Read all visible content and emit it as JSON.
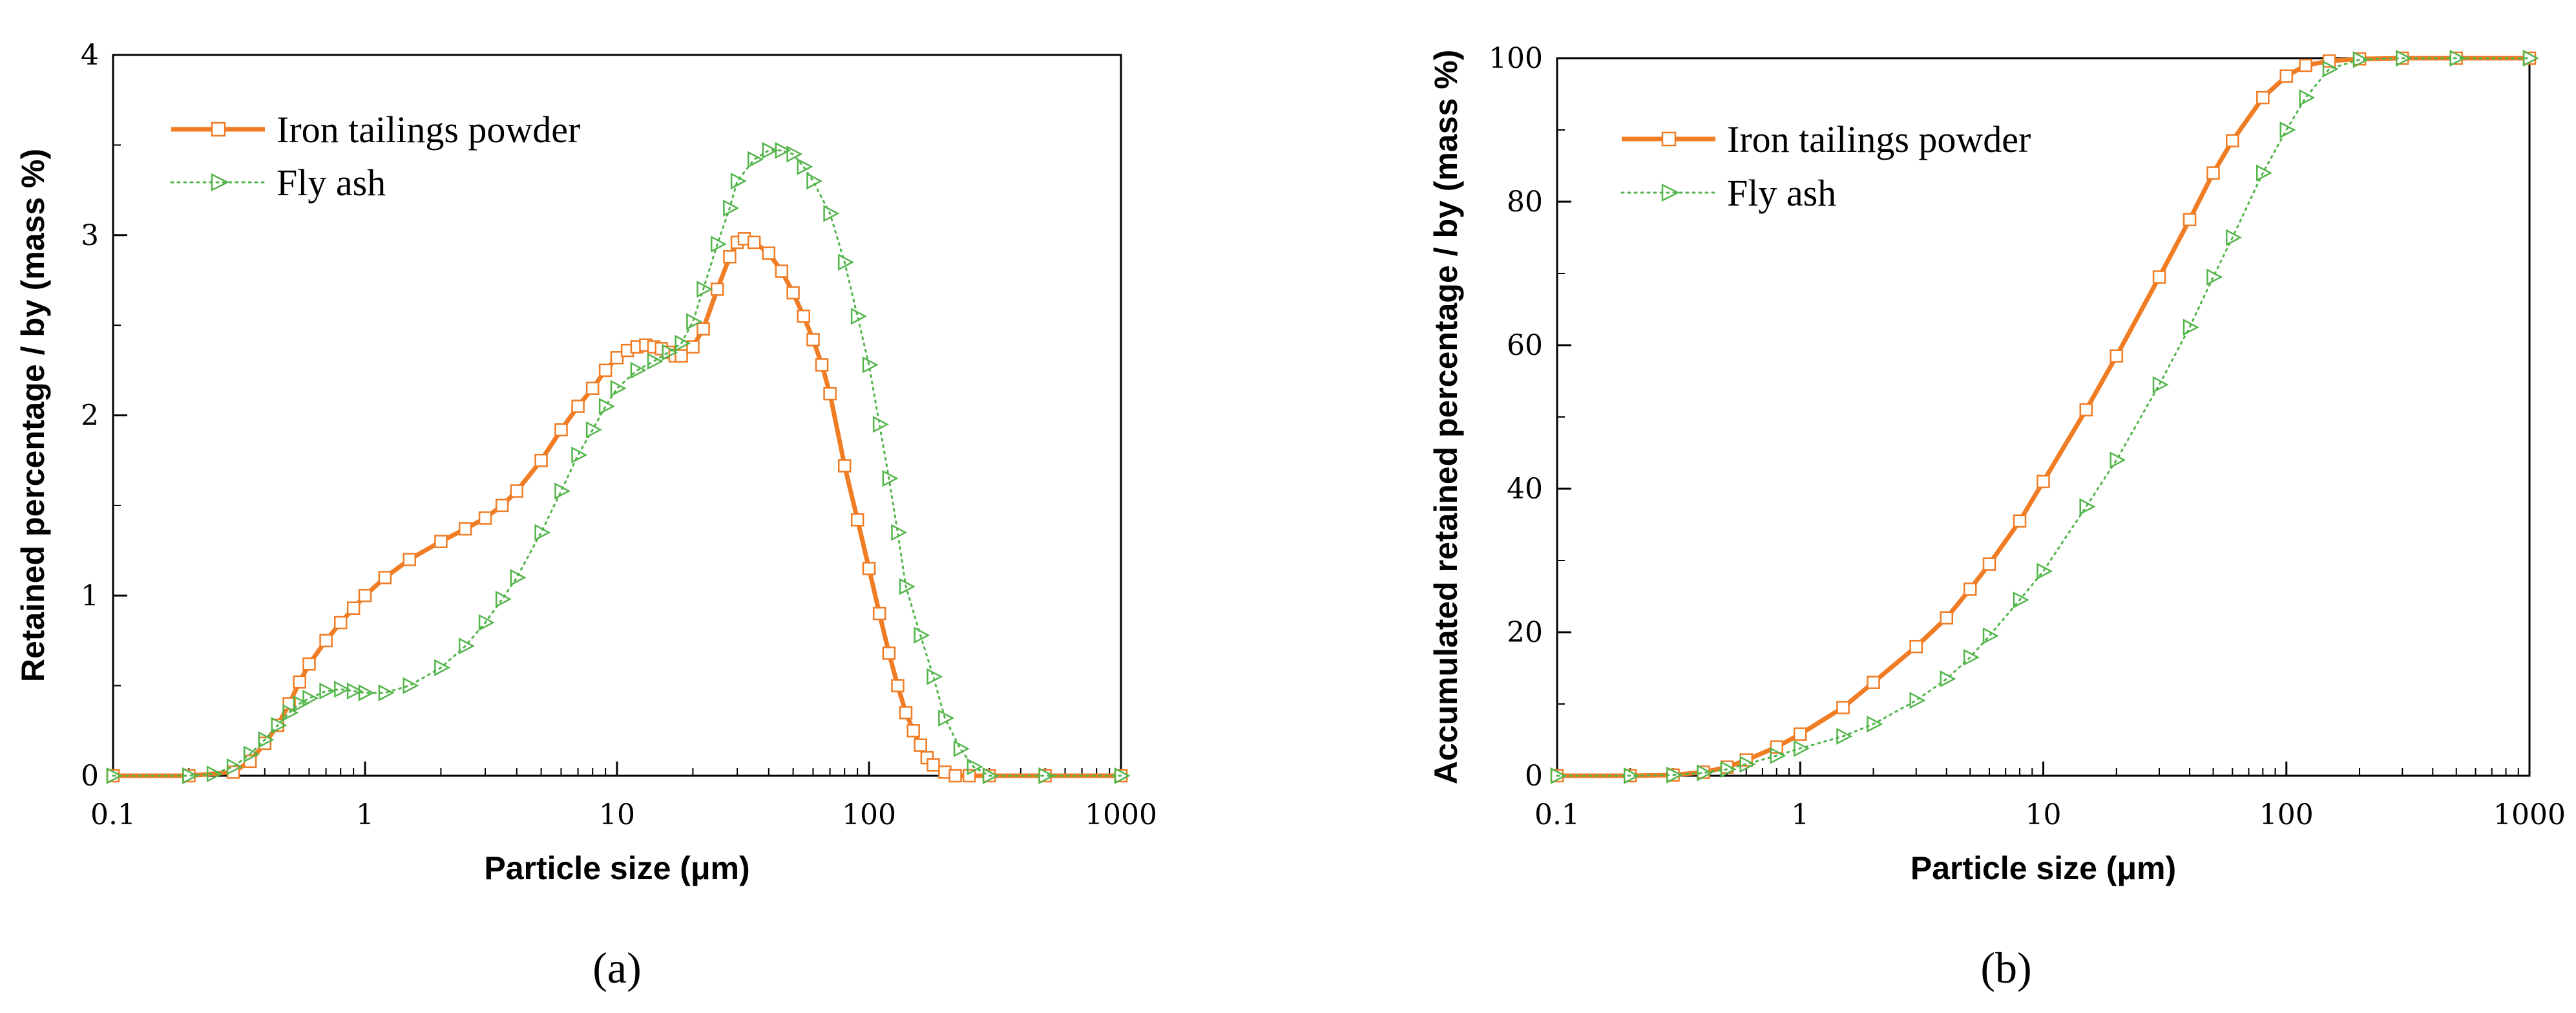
{
  "colors": {
    "iron": "#f07c24",
    "fly": "#52b54a",
    "axis": "#000000"
  },
  "chart_data": [
    {
      "type": "line",
      "panel": "(a)",
      "xscale": "log",
      "xlim": [
        0.1,
        1000
      ],
      "ylim": [
        0,
        4
      ],
      "xticks": [
        "0.1",
        "1",
        "10",
        "100",
        "1000"
      ],
      "yticks": [
        "0",
        "1",
        "2",
        "3",
        "4"
      ],
      "xlabel": "Particle size (μm)",
      "ylabel": "Retained percentage / by (mass %)",
      "legend": [
        "Iron tailings powder",
        "Fly ash"
      ],
      "series": [
        {
          "name": "Iron tailings powder",
          "marker": "square",
          "x": [
            0.1,
            0.2,
            0.3,
            0.35,
            0.4,
            0.45,
            0.5,
            0.55,
            0.6,
            0.7,
            0.8,
            0.9,
            1,
            1.2,
            1.5,
            2,
            2.5,
            3,
            3.5,
            4,
            5,
            6,
            7,
            8,
            9,
            10,
            11,
            12,
            13,
            14,
            15,
            16,
            17,
            18,
            20,
            22,
            25,
            28,
            30,
            32,
            35,
            40,
            45,
            50,
            55,
            60,
            65,
            70,
            80,
            90,
            100,
            110,
            120,
            130,
            140,
            150,
            160,
            170,
            180,
            200,
            220,
            250,
            300,
            500,
            1000
          ],
          "y": [
            0,
            0,
            0.02,
            0.08,
            0.18,
            0.28,
            0.4,
            0.52,
            0.62,
            0.75,
            0.85,
            0.93,
            1.0,
            1.1,
            1.2,
            1.3,
            1.37,
            1.43,
            1.5,
            1.58,
            1.75,
            1.92,
            2.05,
            2.15,
            2.25,
            2.32,
            2.36,
            2.38,
            2.39,
            2.38,
            2.37,
            2.35,
            2.33,
            2.33,
            2.38,
            2.48,
            2.7,
            2.88,
            2.96,
            2.98,
            2.96,
            2.9,
            2.8,
            2.68,
            2.55,
            2.42,
            2.28,
            2.12,
            1.72,
            1.42,
            1.15,
            0.9,
            0.68,
            0.5,
            0.35,
            0.25,
            0.17,
            0.1,
            0.06,
            0.02,
            0,
            0,
            0,
            0,
            0
          ]
        },
        {
          "name": "Fly ash",
          "marker": "triangle-right",
          "x": [
            0.1,
            0.2,
            0.25,
            0.3,
            0.35,
            0.4,
            0.45,
            0.5,
            0.55,
            0.6,
            0.7,
            0.8,
            0.9,
            1,
            1.2,
            1.5,
            2,
            2.5,
            3,
            3.5,
            4,
            5,
            6,
            7,
            8,
            9,
            10,
            12,
            14,
            16,
            18,
            20,
            22,
            25,
            28,
            30,
            35,
            40,
            45,
            50,
            55,
            60,
            70,
            80,
            90,
            100,
            110,
            120,
            130,
            140,
            160,
            180,
            200,
            230,
            260,
            300,
            500,
            1000
          ],
          "y": [
            0,
            0,
            0.01,
            0.05,
            0.12,
            0.2,
            0.28,
            0.35,
            0.4,
            0.43,
            0.47,
            0.48,
            0.47,
            0.46,
            0.46,
            0.5,
            0.6,
            0.72,
            0.85,
            0.98,
            1.1,
            1.35,
            1.58,
            1.78,
            1.92,
            2.05,
            2.15,
            2.25,
            2.3,
            2.35,
            2.4,
            2.52,
            2.7,
            2.95,
            3.15,
            3.3,
            3.42,
            3.47,
            3.47,
            3.45,
            3.38,
            3.3,
            3.12,
            2.85,
            2.55,
            2.28,
            1.95,
            1.65,
            1.35,
            1.05,
            0.78,
            0.55,
            0.32,
            0.15,
            0.05,
            0,
            0,
            0
          ]
        }
      ]
    },
    {
      "type": "line",
      "panel": "(b)",
      "xscale": "log",
      "xlim": [
        0.1,
        1000
      ],
      "ylim": [
        0,
        100
      ],
      "xticks": [
        "0.1",
        "1",
        "10",
        "100",
        "1000"
      ],
      "yticks": [
        "0",
        "20",
        "40",
        "60",
        "80",
        "100"
      ],
      "xlabel": "Particle size (μm)",
      "ylabel": "Accumulated retained percentage / by (mass %)",
      "legend": [
        "Iron tailings powder",
        "Fly ash"
      ],
      "series": [
        {
          "name": "Iron tailings powder",
          "marker": "square",
          "x": [
            0.1,
            0.2,
            0.3,
            0.4,
            0.5,
            0.6,
            0.8,
            1,
            1.5,
            2,
            3,
            4,
            5,
            6,
            8,
            10,
            15,
            20,
            30,
            40,
            50,
            60,
            80,
            100,
            120,
            150,
            200,
            300,
            500,
            1000
          ],
          "y": [
            0,
            0,
            0.1,
            0.5,
            1.2,
            2.2,
            4.0,
            5.8,
            9.5,
            13.0,
            18.0,
            22.0,
            26.0,
            29.5,
            35.5,
            41.0,
            51.0,
            58.5,
            69.5,
            77.5,
            84.0,
            88.5,
            94.5,
            97.5,
            99.0,
            99.6,
            99.9,
            100,
            100,
            100
          ]
        },
        {
          "name": "Fly ash",
          "marker": "triangle-right",
          "x": [
            0.1,
            0.2,
            0.3,
            0.4,
            0.5,
            0.6,
            0.8,
            1,
            1.5,
            2,
            3,
            4,
            5,
            6,
            8,
            10,
            15,
            20,
            30,
            40,
            50,
            60,
            80,
            100,
            120,
            150,
            200,
            300,
            500,
            1000
          ],
          "y": [
            0,
            0,
            0.1,
            0.4,
            0.9,
            1.6,
            2.8,
            3.8,
            5.5,
            7.2,
            10.5,
            13.5,
            16.5,
            19.5,
            24.5,
            28.5,
            37.5,
            44.0,
            54.5,
            62.5,
            69.5,
            75.0,
            84.0,
            90.0,
            94.5,
            98.5,
            99.8,
            100,
            100,
            100
          ]
        }
      ]
    }
  ]
}
